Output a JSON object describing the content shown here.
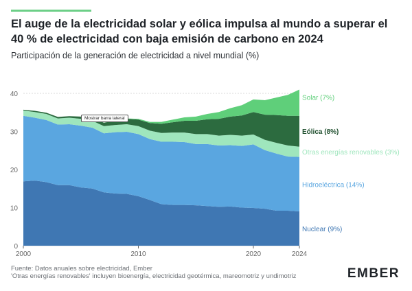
{
  "title": "El auge de la electricidad solar y eólica impulsa al mundo a superar el 40 % de electricidad con baja emisión de carbono en 2024",
  "subtitle": "Participación de la generación de electricidad a nivel mundial (%)",
  "tooltip": "Mostrar barra lateral",
  "footnote": {
    "line1": "Fuente: Datos anuales sobre electricidad, Ember",
    "line2": "'Otras energías renovables' incluyen bioenergía, electricidad geotérmica, mareomotriz y undimotriz"
  },
  "logo": {
    "text": "EMBER"
  },
  "colors": {
    "accent": "#6ccf87",
    "nuclear": "#3f77b3",
    "hydro": "#5aa6e0",
    "other_renewables": "#9fe6bd",
    "wind": "#2c6b3f",
    "solar": "#5fcf7a",
    "grid": "#d9d9d9",
    "axis_text": "#666666"
  },
  "chart_data": {
    "type": "area",
    "stacked": true,
    "x": [
      2000,
      2001,
      2002,
      2003,
      2004,
      2005,
      2006,
      2007,
      2008,
      2009,
      2010,
      2011,
      2012,
      2013,
      2014,
      2015,
      2016,
      2017,
      2018,
      2019,
      2020,
      2021,
      2022,
      2023,
      2024
    ],
    "xticks": [
      2000,
      2010,
      2020,
      2024
    ],
    "ylim": [
      0,
      40
    ],
    "yticks": [
      0,
      10,
      20,
      30,
      40
    ],
    "grid": true,
    "series": [
      {
        "name": "Nuclear",
        "label": "Nuclear (9%)",
        "color_key": "nuclear",
        "values": [
          16.9,
          17.1,
          16.7,
          15.9,
          15.9,
          15.3,
          15.0,
          14.0,
          13.7,
          13.6,
          13.0,
          12.0,
          10.9,
          10.7,
          10.7,
          10.6,
          10.4,
          10.2,
          10.3,
          10.0,
          9.9,
          9.7,
          9.2,
          9.2,
          9.0
        ]
      },
      {
        "name": "Hidroeléctrica",
        "label": "Hidroeléctrica (14%)",
        "color_key": "hydro",
        "values": [
          17.2,
          16.5,
          16.3,
          15.9,
          16.0,
          16.2,
          16.0,
          15.5,
          16.1,
          16.3,
          16.3,
          16.0,
          16.4,
          16.6,
          16.5,
          16.1,
          16.3,
          16.1,
          16.1,
          16.2,
          16.7,
          15.4,
          15.0,
          14.2,
          14.3
        ]
      },
      {
        "name": "Otras energías renovables",
        "label": "Otras energías renovables (3%)",
        "color_key": "other_renewables",
        "values": [
          1.4,
          1.5,
          1.6,
          1.6,
          1.7,
          1.8,
          1.8,
          1.9,
          1.9,
          2.0,
          2.1,
          2.2,
          2.3,
          2.4,
          2.5,
          2.6,
          2.6,
          2.6,
          2.7,
          2.7,
          2.6,
          2.7,
          2.8,
          2.9,
          2.7
        ]
      },
      {
        "name": "Eólica",
        "label": "Eólica (8%)",
        "color_key": "wind",
        "values": [
          0.2,
          0.3,
          0.3,
          0.4,
          0.4,
          0.6,
          0.7,
          0.9,
          1.1,
          1.4,
          1.7,
          2.0,
          2.4,
          2.7,
          3.1,
          3.5,
          3.9,
          4.4,
          4.8,
          5.3,
          5.9,
          6.6,
          7.3,
          7.8,
          8.1
        ]
      },
      {
        "name": "Solar",
        "label": "Solar (7%)",
        "color_key": "solar",
        "values": [
          0.0,
          0.0,
          0.0,
          0.0,
          0.0,
          0.0,
          0.0,
          0.0,
          0.1,
          0.1,
          0.2,
          0.3,
          0.5,
          0.7,
          0.9,
          1.1,
          1.4,
          1.8,
          2.2,
          2.7,
          3.3,
          3.8,
          4.6,
          5.5,
          6.9
        ]
      }
    ]
  }
}
